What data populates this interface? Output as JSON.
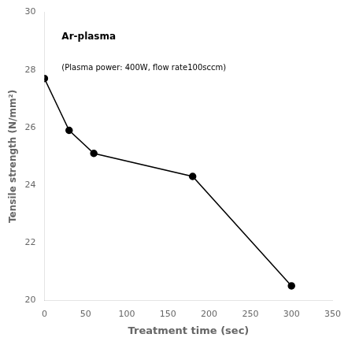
{
  "chart_data": {
    "type": "line",
    "x": [
      0,
      30,
      60,
      180,
      300
    ],
    "values": [
      27.7,
      25.9,
      25.1,
      24.3,
      20.5
    ],
    "xlabel": "Treatment time (sec)",
    "ylabel": "Tensile strength (N/mm²)",
    "xlim": [
      0,
      350
    ],
    "ylim": [
      20,
      30
    ],
    "xticks": [
      0,
      50,
      100,
      150,
      200,
      250,
      300,
      350
    ],
    "yticks": [
      20,
      22,
      24,
      26,
      28,
      30
    ],
    "annotations": [
      "Ar-plasma",
      "(Plasma power: 400W, flow rate100sccm)"
    ],
    "color": "#000000",
    "marker": "circle",
    "grid": false
  }
}
